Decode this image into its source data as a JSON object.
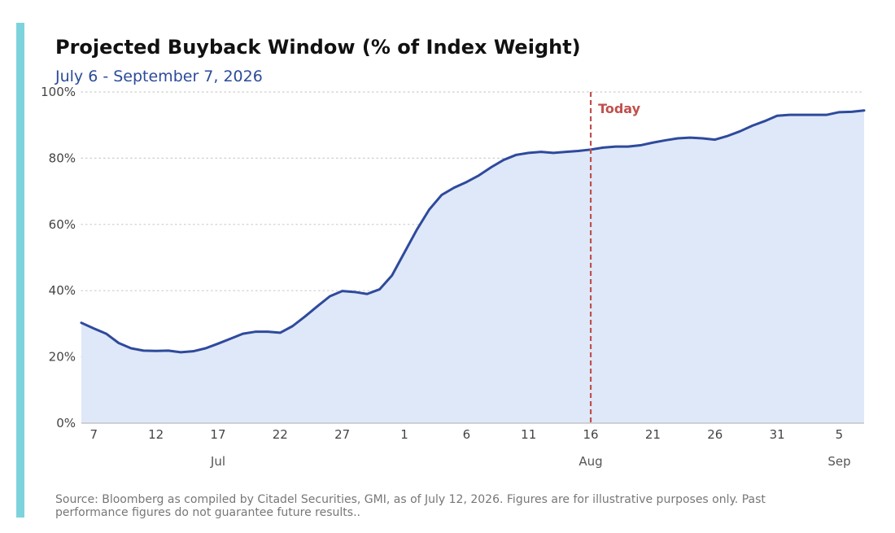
{
  "colors": {
    "accent_bar": "#7dd3dc",
    "line": "#2e4a9c",
    "fill": "#dfe8f8",
    "today_marker": "#c0504d",
    "grid": "#cccccc"
  },
  "chart_data": {
    "type": "area",
    "title": "Projected Buyback Window (% of Index Weight)",
    "subtitle": "July 6 - September 7, 2026",
    "xlabel": "",
    "ylabel": "",
    "x_start": "2026-07-06",
    "x_end": "2026-09-07",
    "ylim": [
      0,
      100
    ],
    "y_ticks": [
      "0%",
      "20%",
      "40%",
      "60%",
      "80%",
      "100%"
    ],
    "x_ticks": [
      {
        "date": "2026-07-07",
        "label": "7"
      },
      {
        "date": "2026-07-12",
        "label": "12"
      },
      {
        "date": "2026-07-17",
        "label": "17"
      },
      {
        "date": "2026-07-22",
        "label": "22"
      },
      {
        "date": "2026-07-27",
        "label": "27"
      },
      {
        "date": "2026-08-01",
        "label": "1"
      },
      {
        "date": "2026-08-06",
        "label": "6"
      },
      {
        "date": "2026-08-11",
        "label": "11"
      },
      {
        "date": "2026-08-16",
        "label": "16"
      },
      {
        "date": "2026-08-21",
        "label": "21"
      },
      {
        "date": "2026-08-26",
        "label": "26"
      },
      {
        "date": "2026-08-31",
        "label": "31"
      },
      {
        "date": "2026-09-05",
        "label": "5"
      }
    ],
    "month_labels": [
      {
        "date": "2026-07-17",
        "label": "Jul"
      },
      {
        "date": "2026-08-16",
        "label": "Aug"
      },
      {
        "date": "2026-09-05",
        "label": "Sep"
      }
    ],
    "grid": "horizontal dotted",
    "series": [
      {
        "values": [
          {
            "x": "2026-07-06",
            "y": 30.3
          },
          {
            "x": "2026-07-07",
            "y": 28.6
          },
          {
            "x": "2026-07-08",
            "y": 27.0
          },
          {
            "x": "2026-07-09",
            "y": 24.2
          },
          {
            "x": "2026-07-10",
            "y": 22.6
          },
          {
            "x": "2026-07-11",
            "y": 21.9
          },
          {
            "x": "2026-07-12",
            "y": 21.8
          },
          {
            "x": "2026-07-13",
            "y": 21.9
          },
          {
            "x": "2026-07-14",
            "y": 21.4
          },
          {
            "x": "2026-07-15",
            "y": 21.7
          },
          {
            "x": "2026-07-16",
            "y": 22.6
          },
          {
            "x": "2026-07-17",
            "y": 24.0
          },
          {
            "x": "2026-07-18",
            "y": 25.5
          },
          {
            "x": "2026-07-19",
            "y": 27.0
          },
          {
            "x": "2026-07-20",
            "y": 27.6
          },
          {
            "x": "2026-07-21",
            "y": 27.6
          },
          {
            "x": "2026-07-22",
            "y": 27.3
          },
          {
            "x": "2026-07-23",
            "y": 29.3
          },
          {
            "x": "2026-07-24",
            "y": 32.2
          },
          {
            "x": "2026-07-25",
            "y": 35.3
          },
          {
            "x": "2026-07-26",
            "y": 38.3
          },
          {
            "x": "2026-07-27",
            "y": 39.9
          },
          {
            "x": "2026-07-28",
            "y": 39.6
          },
          {
            "x": "2026-07-29",
            "y": 39.0
          },
          {
            "x": "2026-07-30",
            "y": 40.4
          },
          {
            "x": "2026-07-31",
            "y": 44.6
          },
          {
            "x": "2026-08-01",
            "y": 51.5
          },
          {
            "x": "2026-08-02",
            "y": 58.4
          },
          {
            "x": "2026-08-03",
            "y": 64.5
          },
          {
            "x": "2026-08-04",
            "y": 68.9
          },
          {
            "x": "2026-08-05",
            "y": 71.1
          },
          {
            "x": "2026-08-06",
            "y": 72.8
          },
          {
            "x": "2026-08-07",
            "y": 74.8
          },
          {
            "x": "2026-08-08",
            "y": 77.3
          },
          {
            "x": "2026-08-09",
            "y": 79.5
          },
          {
            "x": "2026-08-10",
            "y": 81.0
          },
          {
            "x": "2026-08-11",
            "y": 81.6
          },
          {
            "x": "2026-08-12",
            "y": 81.9
          },
          {
            "x": "2026-08-13",
            "y": 81.6
          },
          {
            "x": "2026-08-14",
            "y": 81.9
          },
          {
            "x": "2026-08-15",
            "y": 82.2
          },
          {
            "x": "2026-08-16",
            "y": 82.6
          },
          {
            "x": "2026-08-17",
            "y": 83.2
          },
          {
            "x": "2026-08-18",
            "y": 83.5
          },
          {
            "x": "2026-08-19",
            "y": 83.5
          },
          {
            "x": "2026-08-20",
            "y": 83.9
          },
          {
            "x": "2026-08-21",
            "y": 84.7
          },
          {
            "x": "2026-08-22",
            "y": 85.4
          },
          {
            "x": "2026-08-23",
            "y": 86.0
          },
          {
            "x": "2026-08-24",
            "y": 86.2
          },
          {
            "x": "2026-08-25",
            "y": 86.0
          },
          {
            "x": "2026-08-26",
            "y": 85.6
          },
          {
            "x": "2026-08-27",
            "y": 86.7
          },
          {
            "x": "2026-08-28",
            "y": 88.1
          },
          {
            "x": "2026-08-29",
            "y": 89.8
          },
          {
            "x": "2026-08-30",
            "y": 91.2
          },
          {
            "x": "2026-08-31",
            "y": 92.8
          },
          {
            "x": "2026-09-01",
            "y": 93.1
          },
          {
            "x": "2026-09-02",
            "y": 93.1
          },
          {
            "x": "2026-09-03",
            "y": 93.1
          },
          {
            "x": "2026-09-04",
            "y": 93.1
          },
          {
            "x": "2026-09-05",
            "y": 93.9
          },
          {
            "x": "2026-09-06",
            "y": 94.0
          },
          {
            "x": "2026-09-07",
            "y": 94.4
          }
        ]
      }
    ],
    "annotations": [
      {
        "type": "vertical-line",
        "x": "2026-08-16",
        "label": "Today",
        "style": "dashed"
      }
    ]
  },
  "source": "Source: Bloomberg as compiled by Citadel Securities, GMI, as of July 12, 2026. Figures are for illustrative purposes only. Past performance figures do not guarantee future results.."
}
